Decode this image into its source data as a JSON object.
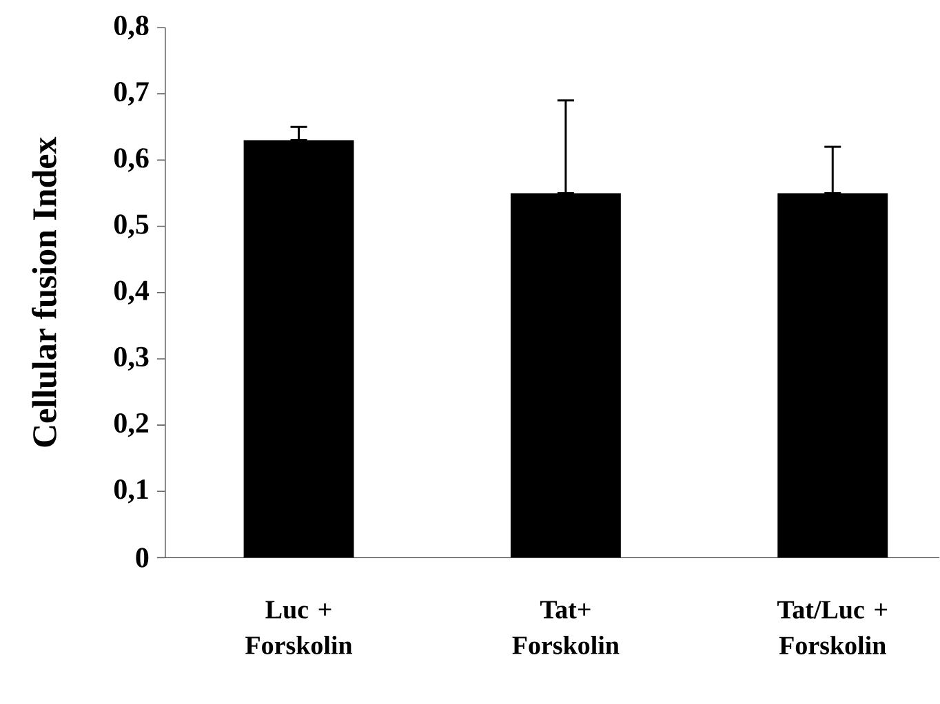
{
  "chart_data": {
    "type": "bar",
    "ylabel": "Cellular fusion Index",
    "categories": [
      "Luc + Forskolin",
      "Tat+ Forskolin",
      "Tat/Luc + Forskolin"
    ],
    "values": [
      0.63,
      0.55,
      0.55
    ],
    "errors": [
      [
        0.63,
        0.65
      ],
      [
        0.55,
        0.69
      ],
      [
        0.55,
        0.62
      ]
    ],
    "color": "#000000",
    "ylim": [
      0,
      0.8
    ],
    "yticks": [
      0,
      {
        "value": 0.1,
        "label": "0,1"
      },
      {
        "value": 0.2,
        "label": "0,2"
      },
      {
        "value": 0.3,
        "label": "0,3"
      },
      {
        "value": 0.4,
        "label": "0,4"
      },
      {
        "value": 0.5,
        "label": "0,5"
      },
      {
        "value": 0.6,
        "label": "0,6"
      },
      {
        "value": 0.7,
        "label": "0,7"
      },
      {
        "value": 0.8,
        "label": "0,8"
      }
    ]
  }
}
